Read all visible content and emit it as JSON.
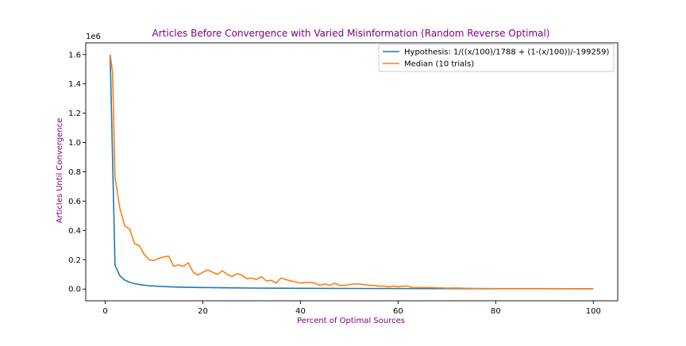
{
  "chart_data": {
    "type": "line",
    "title": "Articles Before Convergence with Varied Misinformation (Random Reverse Optimal)",
    "xlabel": "Percent of Optimal Sources",
    "ylabel": "Articles Until Convergence",
    "y_offset_label": "1e6",
    "xlim": [
      -4,
      105
    ],
    "ylim": [
      -0.08,
      1.68
    ],
    "x_ticks": [
      0,
      20,
      40,
      60,
      80,
      100
    ],
    "x_tick_labels": [
      "0",
      "20",
      "40",
      "60",
      "80",
      "100"
    ],
    "y_ticks": [
      0.0,
      0.2,
      0.4,
      0.6,
      0.8,
      1.0,
      1.2,
      1.4,
      1.6
    ],
    "y_tick_labels": [
      "0.0",
      "0.2",
      "0.4",
      "0.6",
      "0.8",
      "1.0",
      "1.2",
      "1.4",
      "1.6"
    ],
    "grid": false,
    "legend_position": "top-right",
    "label_color": "#800080",
    "series": [
      {
        "name": "Hypothesis: 1/((x/100)/1788 + (1-(x/100))/-199259)",
        "color": "#1f77b4",
        "x": [
          1,
          2,
          3,
          4,
          5,
          6,
          7,
          8,
          9,
          10,
          12,
          14,
          16,
          18,
          20,
          25,
          30,
          35,
          40,
          50,
          60,
          70,
          80,
          90,
          100
        ],
        "values": [
          1.6,
          0.162,
          0.09,
          0.061,
          0.046,
          0.037,
          0.0305,
          0.0262,
          0.0229,
          0.0203,
          0.0169,
          0.0144,
          0.0126,
          0.0112,
          0.0101,
          0.0081,
          0.0067,
          0.0057,
          0.005,
          0.004,
          0.0033,
          0.0028,
          0.0025,
          0.0022,
          0.0018
        ]
      },
      {
        "name": "Median (10 trials)",
        "color": "#ff7f0e",
        "x": [
          1,
          1.5,
          2,
          3,
          4,
          5,
          6,
          7,
          8,
          9,
          10,
          11,
          12,
          13,
          14,
          15,
          16,
          17,
          18,
          19,
          20,
          21,
          22,
          23,
          24,
          25,
          26,
          27,
          28,
          29,
          30,
          31,
          32,
          33,
          34,
          35,
          36,
          37,
          38,
          39,
          40,
          41,
          42,
          43,
          44,
          45,
          46,
          47,
          48,
          49,
          50,
          51,
          52,
          53,
          54,
          55,
          56,
          57,
          58,
          59,
          60,
          61,
          62,
          63,
          64,
          65,
          66,
          67,
          68,
          69,
          70,
          72,
          74,
          76,
          78,
          80,
          85,
          90,
          95,
          100
        ],
        "values": [
          1.6,
          1.48,
          0.76,
          0.55,
          0.43,
          0.41,
          0.31,
          0.295,
          0.235,
          0.2,
          0.195,
          0.21,
          0.22,
          0.225,
          0.155,
          0.165,
          0.155,
          0.18,
          0.115,
          0.095,
          0.115,
          0.13,
          0.115,
          0.1,
          0.125,
          0.1,
          0.085,
          0.105,
          0.095,
          0.07,
          0.075,
          0.065,
          0.085,
          0.055,
          0.06,
          0.04,
          0.075,
          0.065,
          0.055,
          0.05,
          0.04,
          0.045,
          0.045,
          0.04,
          0.025,
          0.035,
          0.025,
          0.04,
          0.025,
          0.025,
          0.03,
          0.035,
          0.035,
          0.03,
          0.025,
          0.025,
          0.02,
          0.02,
          0.015,
          0.02,
          0.015,
          0.02,
          0.02,
          0.01,
          0.01,
          0.01,
          0.01,
          0.01,
          0.008,
          0.008,
          0.006,
          0.007,
          0.005,
          0.004,
          0.004,
          0.003,
          0.003,
          0.003,
          0.002,
          0.002
        ]
      }
    ]
  }
}
